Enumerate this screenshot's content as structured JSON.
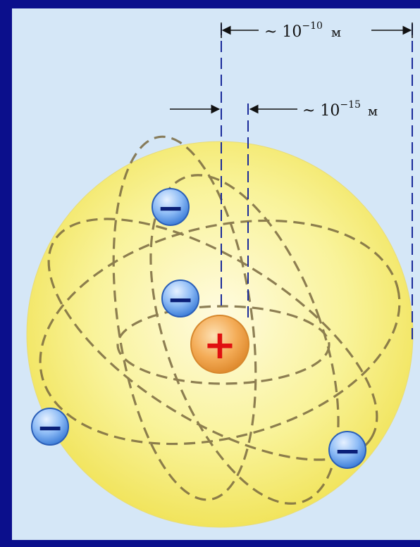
{
  "labels": {
    "atom_size": {
      "prefix": "~ 10",
      "exponent": "−10",
      "unit": "м"
    },
    "nucleus_size": {
      "prefix": "~ 10",
      "exponent": "−15",
      "unit": "м"
    }
  },
  "symbols": {
    "nucleus": "+",
    "electron": "−"
  },
  "colors": {
    "background": "#0b0f8c",
    "panel": "#d5e7f7",
    "atom_fill": "#f6f07a",
    "nucleus_fill": "#f2a64c",
    "nucleus_sign": "#e01010",
    "electron_fill": "#6aa4ee",
    "electron_sign": "#0a1f78",
    "guide_lines": "#1a2a9a",
    "orbits": "#7a6a40"
  },
  "electrons": [
    {
      "name": "electron-top"
    },
    {
      "name": "electron-upper-middle"
    },
    {
      "name": "electron-left"
    },
    {
      "name": "electron-right"
    }
  ]
}
